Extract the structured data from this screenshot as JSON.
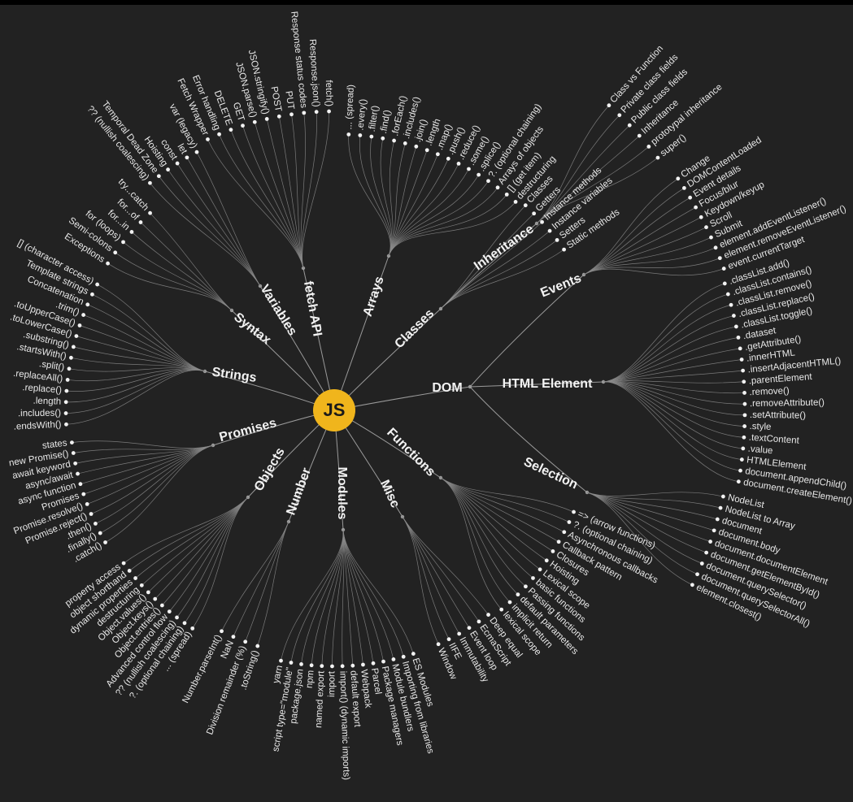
{
  "root": "JS",
  "branches": [
    {
      "label": "Strings",
      "leaves": [
        "[] (character access)",
        "Template strings",
        "Concatenation",
        ".trim()",
        ".toUpperCase()",
        ".toLowerCase()",
        ".substring()",
        ".startsWith()",
        ".split()",
        ".replaceAll()",
        ".replace()",
        ".length",
        ".includes()",
        ".endsWith()"
      ]
    },
    {
      "label": "Syntax",
      "leaves": [
        "try...catch",
        "for...of",
        "for...in",
        "for (loops)",
        "Semi-colons",
        "Exceptions"
      ]
    },
    {
      "label": "Variables",
      "leaves": [
        "?? (nullish coalescing)",
        "Temporal Dead Zone",
        "Hoisting",
        "const",
        "let",
        "var (legacy)"
      ]
    },
    {
      "label": "fetch API",
      "leaves": [
        "Fetch Wrapper",
        "Error handling",
        "DELETE",
        "GET",
        "JSON.parse()",
        "JSON.stringify()",
        "POST",
        "PUT",
        "Response status codes",
        "Response.json()",
        "fetch()"
      ]
    },
    {
      "label": "Arrays",
      "leaves": [
        "... (spread)",
        ".every()",
        ".filter()",
        ".find()",
        ".forEach()",
        ".includes()",
        ".join()",
        ".length",
        ".map()",
        ".push()",
        ".reduce()",
        ".some()",
        ".splice()",
        "?. (optional chaining)",
        "Arrays of objects",
        "[] (get item)",
        "destructuring"
      ]
    },
    {
      "label": "Classes",
      "leaves": [
        "Classes",
        "Getters",
        "Instance methods",
        "Instance variables",
        "Setters",
        "Static methods"
      ],
      "children": [
        {
          "label": "Inheritance",
          "leaves": [
            "Class vs Function",
            "Private class fields",
            "Public class fields",
            "Inheritance",
            "prototypal inheritance",
            "super()"
          ]
        }
      ]
    },
    {
      "label": "DOM",
      "children": [
        {
          "label": "Events",
          "leaves": [
            "Change",
            "DOMContentLoaded",
            "Event details",
            "Focus/blur",
            "Keydown/keyup",
            "Scroll",
            "Submit",
            "element.addEventListener()",
            "element.removeEventListener()",
            "event.currentTarget"
          ]
        },
        {
          "label": "HTML Element",
          "leaves": [
            ".classList.add()",
            ".classList.contains()",
            ".classList.remove()",
            ".classList.replace()",
            ".classList.toggle()",
            ".dataset",
            ".getAttribute()",
            ".innerHTML",
            ".insertAdjacentHTML()",
            ".parentElement",
            ".remove()",
            ".removeAttribute()",
            ".setAttribute()",
            ".style",
            ".textContent",
            ".value",
            "HTMLElement",
            "document.appendChild()",
            "document.createElement()"
          ]
        },
        {
          "label": "Selection",
          "leaves": [
            "NodeList",
            "NodeList to Array",
            "document",
            "document.body",
            "document.documentElement",
            "document.getElementById()",
            "document.querySelector()",
            "document.querySelectorAll()",
            "element.closest()"
          ]
        }
      ]
    },
    {
      "label": "Functions",
      "leaves": [
        "=> (arrow functions)",
        "?. (optional chaining)",
        "Asynchronous callbacks",
        "Callback pattern",
        "Closures",
        "Hoisting",
        "Lexical scope",
        "basic functions",
        "Passing functions",
        "default parameters",
        "implicit return",
        "lexical scope"
      ]
    },
    {
      "label": "Misc",
      "leaves": [
        "Deep equal",
        "EcmaScript",
        "Event loop",
        "Immutability",
        "IIFE",
        "Window"
      ]
    },
    {
      "label": "Modules",
      "leaves": [
        "ES Modules",
        "Importing from libraries",
        "Module bundlers",
        "Package managers",
        "Parcel",
        "Webpack",
        "default export",
        "import() (dynamic imports)",
        "import",
        "named export",
        "npm",
        "package.json",
        "script type=\"module\"",
        "yarn"
      ]
    },
    {
      "label": "Number",
      "leaves": [
        ".toString()",
        "Division remainder (%)",
        "NaN",
        "Number.parseInt()"
      ]
    },
    {
      "label": "Objects",
      "leaves": [
        "... (spread)",
        "?. (optional chaining)",
        "?? (nullish coalescing)",
        "Advanced control flow",
        "Object.entries()",
        "Object.keys()",
        "Object.values()",
        "destructuring",
        "dynamic properties",
        "object shorthand",
        "property access"
      ]
    },
    {
      "label": "Promises",
      "leaves": [
        "states",
        "new Promise()",
        "await keyword",
        "async/await",
        "async function",
        "Promises",
        "Promise.resolve()",
        "Promise.reject()",
        ".then()",
        ".finally()",
        ".catch()"
      ]
    }
  ]
}
